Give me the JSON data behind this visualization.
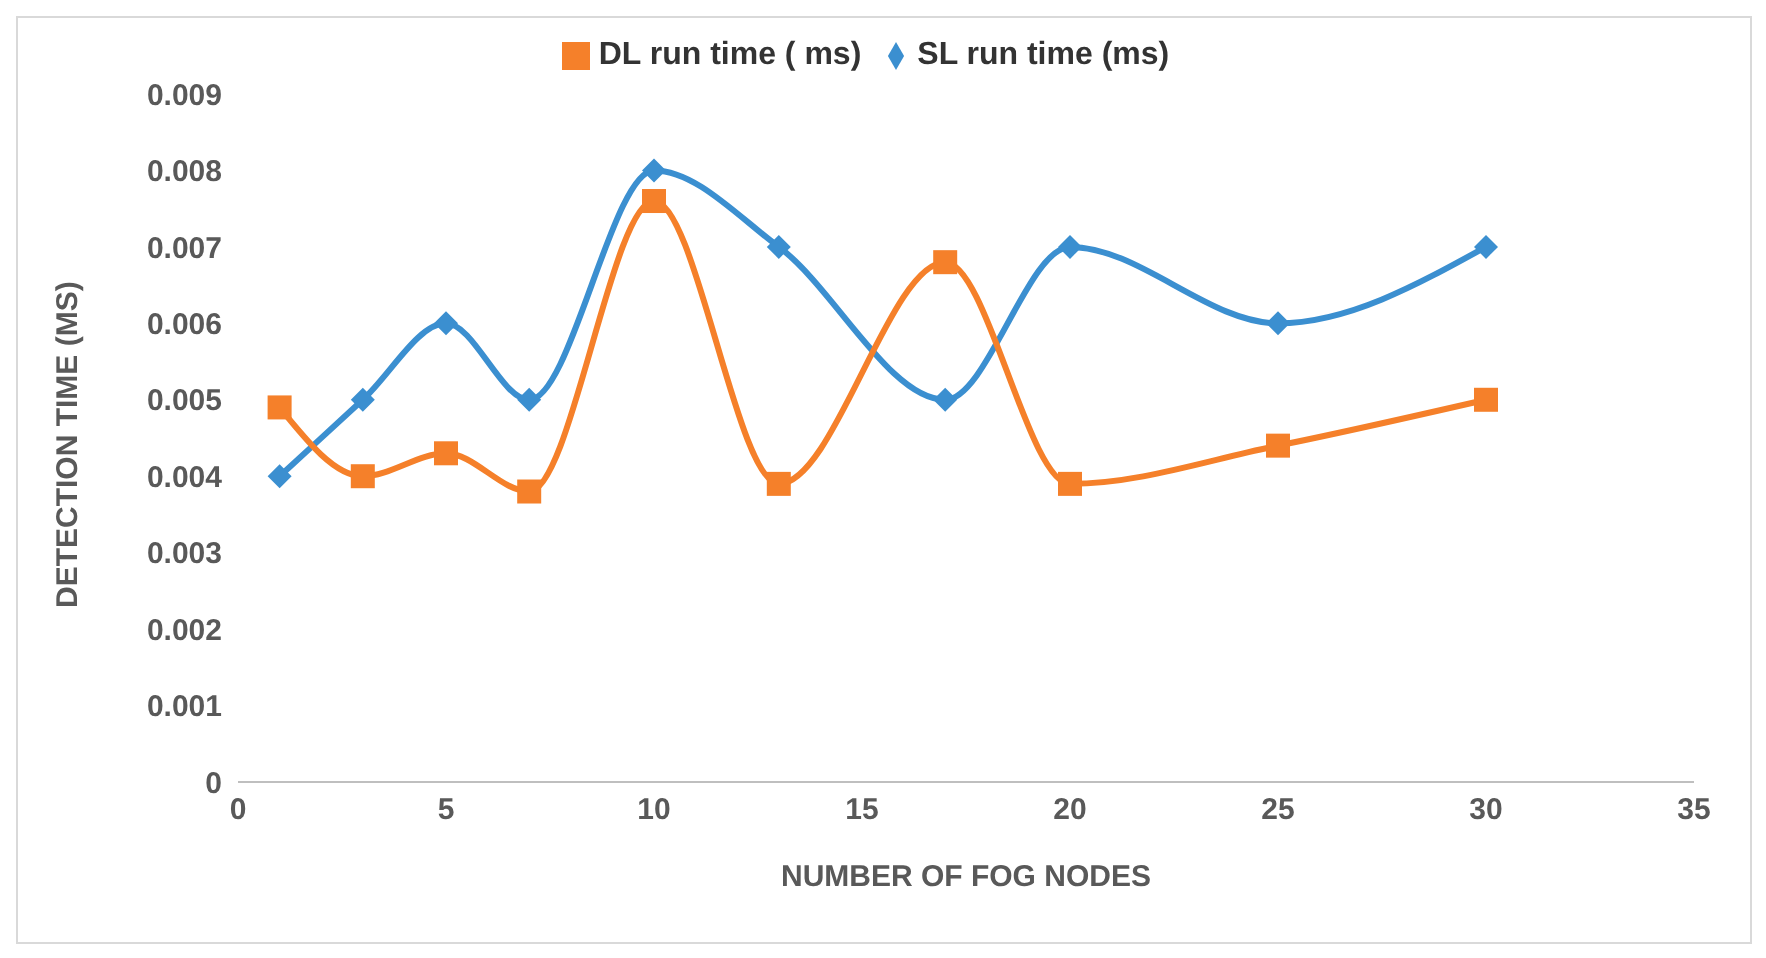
{
  "chart_data": {
    "type": "line",
    "xlabel": "NUMBER OF FOG NODES",
    "ylabel": "DETECTION TIME (MS)",
    "x": [
      1,
      3,
      5,
      7,
      10,
      13,
      17,
      20,
      25,
      30
    ],
    "series": [
      {
        "name": "SL run time (ms)",
        "color": "#3b8fd0",
        "marker": "diamond",
        "values": [
          0.004,
          0.005,
          0.006,
          0.005,
          0.008,
          0.007,
          0.005,
          0.007,
          0.006,
          0.007
        ]
      },
      {
        "name": "DL run time ( ms)",
        "color": "#f5802a",
        "marker": "square",
        "values": [
          0.0049,
          0.004,
          0.0043,
          0.0038,
          0.0076,
          0.0039,
          0.0068,
          0.0039,
          0.0044,
          0.005
        ]
      }
    ],
    "xlim": [
      0,
      35
    ],
    "xticks": [
      0,
      5,
      10,
      15,
      20,
      25,
      30,
      35
    ],
    "ylim": [
      0,
      0.009
    ],
    "yticks": [
      0,
      0.001,
      0.002,
      0.003,
      0.004,
      0.005,
      0.006,
      0.007,
      0.008,
      0.009
    ],
    "grid": false,
    "legend": "top",
    "line_style": "solid"
  }
}
